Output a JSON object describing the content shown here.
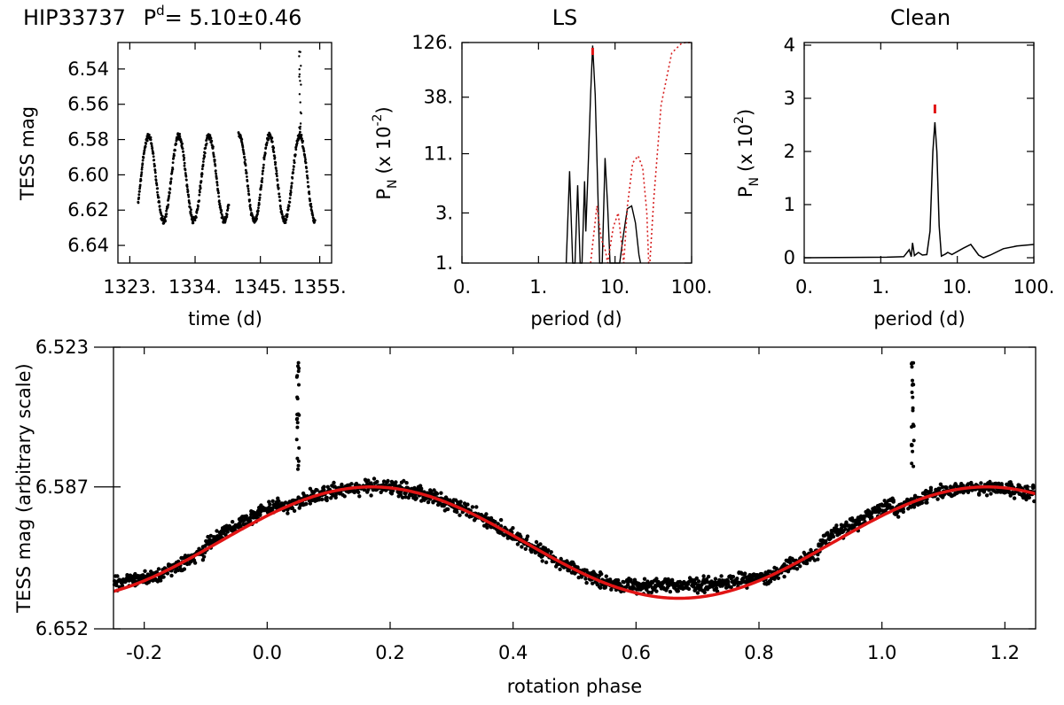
{
  "header": {
    "star": "HIP33737",
    "period_text": "P",
    "period_sup": "d",
    "period_value": "= 5.10±0.46"
  },
  "colors": {
    "data": "#000000",
    "fit": "#e11414",
    "window": "#d62020",
    "peak_marker": "#e11414"
  },
  "chart_data": [
    {
      "type": "scatter",
      "panel": "light-curve",
      "title": "",
      "xlabel": "time (d)",
      "ylabel": "TESS mag",
      "xlim": [
        1321,
        1357
      ],
      "ylim": [
        6.65,
        6.525
      ],
      "y_inverted": true,
      "xticks": [
        1323,
        1334,
        1345,
        1355
      ],
      "xtick_labels": [
        "1323.",
        "1334.",
        "1345.",
        "1355."
      ],
      "yticks": [
        6.54,
        6.56,
        6.58,
        6.6,
        6.62,
        6.64
      ],
      "ytick_labels": [
        "6.54",
        "6.56",
        "6.58",
        "6.60",
        "6.62",
        "6.64"
      ],
      "gaps": [
        [
          1339.7,
          1341.3
        ]
      ],
      "start": 1324.4,
      "end": 1354.2,
      "period": 5.1,
      "mean_mag": 6.602,
      "amplitude": 0.024,
      "flare_time": 1351.7,
      "flare_peak_mag": 6.53
    },
    {
      "type": "line",
      "panel": "LS",
      "title": "LS",
      "xlabel": "period (d)",
      "ylabel": "P (x 10 )",
      "ylabel_sub": "N",
      "ylabel_sup": "-2",
      "x_scale": "log",
      "y_scale": "log",
      "xlim": [
        0.1,
        100
      ],
      "ylim": [
        1,
        126
      ],
      "xticks": [
        0.1,
        1,
        10,
        100
      ],
      "xtick_labels": [
        "0.",
        "1.",
        "10.",
        "100."
      ],
      "yticks": [
        1,
        3,
        11,
        38,
        126
      ],
      "ytick_labels": [
        "1.",
        "3.",
        "11.",
        "38.",
        "126."
      ],
      "peak_period": 5.1,
      "series": [
        {
          "style": "solid",
          "points": [
            [
              2.3,
              1
            ],
            [
              2.55,
              7.5
            ],
            [
              2.8,
              1
            ],
            [
              3.0,
              1
            ],
            [
              3.25,
              5.5
            ],
            [
              3.5,
              1
            ],
            [
              3.7,
              1
            ],
            [
              4.0,
              6
            ],
            [
              4.15,
              2
            ],
            [
              4.45,
              8
            ],
            [
              4.8,
              40
            ],
            [
              5.1,
              118
            ],
            [
              5.5,
              40
            ],
            [
              6.0,
              4
            ],
            [
              6.3,
              1
            ],
            [
              6.8,
              1
            ],
            [
              7.4,
              10
            ],
            [
              8.0,
              3.5
            ],
            [
              8.6,
              1
            ],
            [
              11.5,
              1
            ],
            [
              12.8,
              1.8
            ],
            [
              14.5,
              3.3
            ],
            [
              16.5,
              3.5
            ],
            [
              18.5,
              2.4
            ],
            [
              20.5,
              1.2
            ],
            [
              21.5,
              1
            ]
          ]
        },
        {
          "style": "dotted",
          "points": [
            [
              4.8,
              1
            ],
            [
              5.8,
              3.5
            ],
            [
              6.6,
              1.7
            ],
            [
              7.5,
              1.3
            ],
            [
              8.0,
              1
            ],
            [
              9.5,
              2.2
            ],
            [
              11,
              3
            ],
            [
              13,
              1
            ],
            [
              14.5,
              3.5
            ],
            [
              17,
              9
            ],
            [
              20,
              10.5
            ],
            [
              23,
              8
            ],
            [
              26,
              3
            ],
            [
              27.5,
              1
            ],
            [
              28.5,
              1
            ],
            [
              32,
              4
            ],
            [
              40,
              32
            ],
            [
              55,
              100
            ],
            [
              75,
              125
            ],
            [
              100,
              126
            ]
          ]
        }
      ]
    },
    {
      "type": "line",
      "panel": "Clean",
      "title": "Clean",
      "xlabel": "period (d)",
      "ylabel": "P (x 10 )",
      "ylabel_sub": "N",
      "ylabel_sup": "2",
      "x_scale": "log",
      "xlim": [
        0.1,
        100
      ],
      "ylim": [
        -0.1,
        4.05
      ],
      "xticks": [
        0.1,
        1,
        10,
        100
      ],
      "xtick_labels": [
        "0.",
        "1.",
        "10.",
        "100."
      ],
      "yticks": [
        0,
        1,
        2,
        3,
        4
      ],
      "ytick_labels": [
        "0",
        "1",
        "2",
        "3",
        "4"
      ],
      "peak_period": 5.1,
      "peak_marker_value": 2.8,
      "series": [
        {
          "style": "solid",
          "points": [
            [
              0.1,
              0
            ],
            [
              1.2,
              0.01
            ],
            [
              2.0,
              0.02
            ],
            [
              2.35,
              0.15
            ],
            [
              2.5,
              0.02
            ],
            [
              2.6,
              0.28
            ],
            [
              2.75,
              0.04
            ],
            [
              3.1,
              0.1
            ],
            [
              3.5,
              0.05
            ],
            [
              4.0,
              0.06
            ],
            [
              4.4,
              0.5
            ],
            [
              4.8,
              2.0
            ],
            [
              5.1,
              2.55
            ],
            [
              5.4,
              2.0
            ],
            [
              5.8,
              0.6
            ],
            [
              6.2,
              0.03
            ],
            [
              7.0,
              0.07
            ],
            [
              7.5,
              0.1
            ],
            [
              8.5,
              0.06
            ],
            [
              12,
              0.18
            ],
            [
              15,
              0.25
            ],
            [
              19,
              0.05
            ],
            [
              22,
              0.0
            ],
            [
              27,
              0.05
            ],
            [
              40,
              0.17
            ],
            [
              60,
              0.22
            ],
            [
              100,
              0.25
            ]
          ]
        }
      ]
    },
    {
      "type": "scatter",
      "panel": "phase",
      "title": "",
      "xlabel": "rotation phase",
      "ylabel": "TESS mag (arbitrary scale)",
      "xlim": [
        -0.25,
        1.25
      ],
      "ylim": [
        6.652,
        6.523
      ],
      "y_inverted": true,
      "xticks": [
        -0.2,
        0,
        0.2,
        0.4,
        0.6,
        0.8,
        1.0,
        1.2
      ],
      "xtick_labels": [
        "-0.2",
        "0.0",
        "0.2",
        "0.4",
        "0.6",
        "0.8",
        "1.0",
        "1.2"
      ],
      "yticks": [
        6.523,
        6.587,
        6.652
      ],
      "ytick_labels": [
        "6.523",
        "6.587",
        "6.652"
      ],
      "fit_mean": 6.6125,
      "fit_amplitude": 0.0255,
      "fit_min_phase": 0.17,
      "flare_phases": [
        0.05,
        1.05
      ],
      "flare_peak_mag": 6.53
    }
  ]
}
